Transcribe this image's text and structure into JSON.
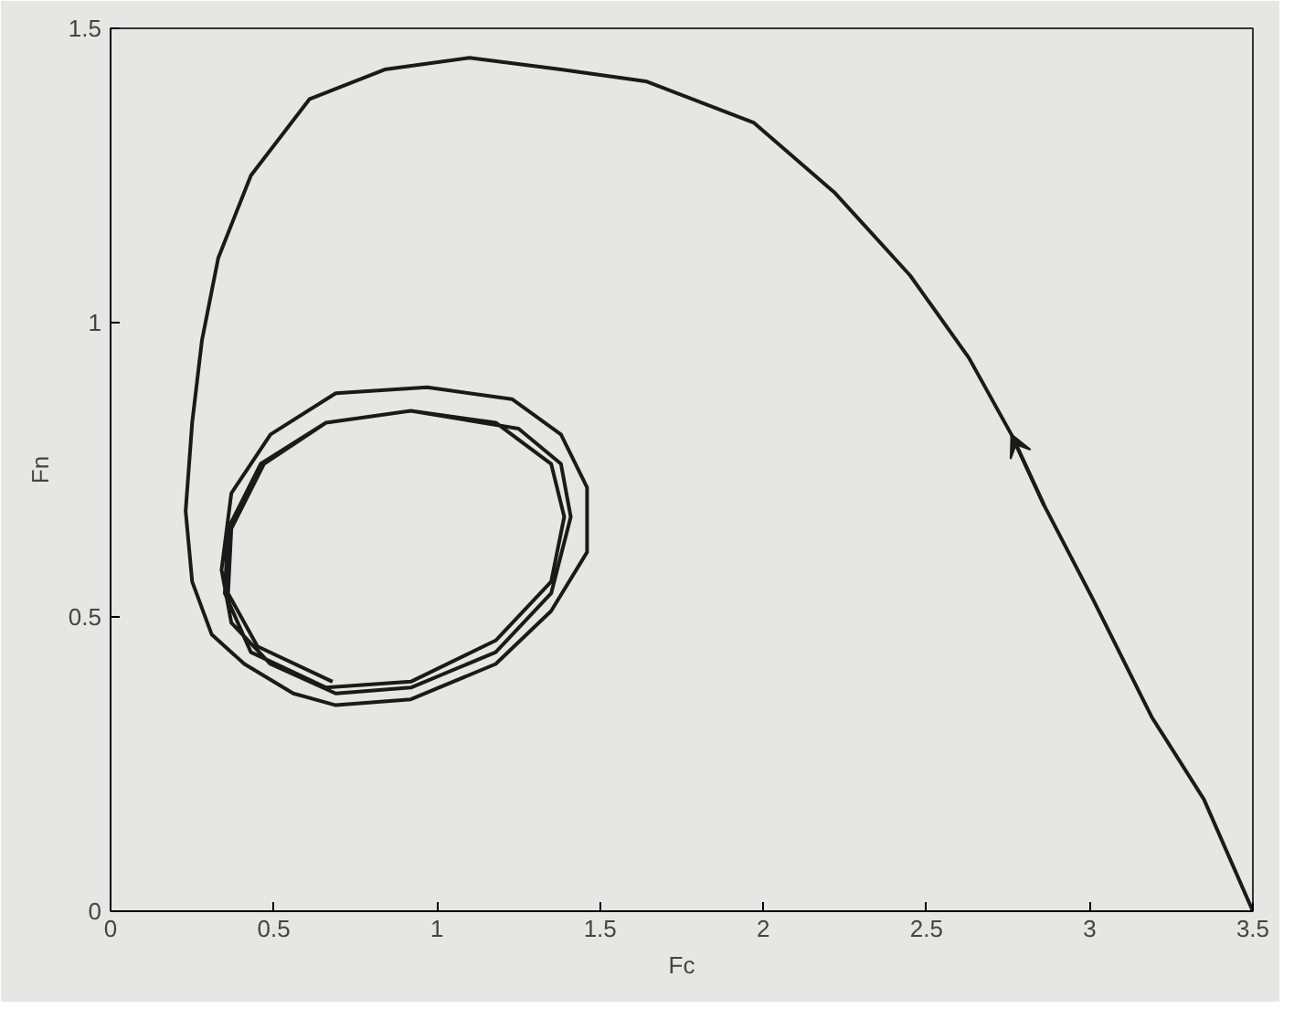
{
  "chart_data": {
    "type": "line",
    "xlabel": "Fc",
    "ylabel": "Fn",
    "xlim": [
      0,
      3.5
    ],
    "ylim": [
      0,
      1.5
    ],
    "xticks": [
      0,
      0.5,
      1,
      1.5,
      2,
      2.5,
      3,
      3.5
    ],
    "yticks": [
      0,
      0.5,
      1,
      1.5
    ],
    "grid": false,
    "marker": "none",
    "line_style": "solid",
    "series": [
      {
        "color": "#1a1a1a",
        "x": [
          3.5,
          3.35,
          3.19,
          3.01,
          2.86,
          2.76,
          2.63,
          2.45,
          2.22,
          1.97,
          1.64,
          1.38,
          1.1,
          0.84,
          0.61,
          0.43,
          0.33,
          0.28,
          0.25,
          0.23,
          0.25,
          0.31,
          0.41,
          0.56,
          0.69,
          0.92,
          1.18,
          1.35,
          1.46,
          1.46,
          1.38,
          1.23,
          0.97,
          0.69,
          0.49,
          0.37,
          0.34,
          0.37,
          0.49,
          0.69,
          0.92,
          1.18,
          1.35,
          1.41,
          1.38,
          1.25,
          0.92,
          0.66,
          0.46,
          0.36,
          0.35,
          0.43,
          0.66,
          0.92,
          1.18,
          1.35,
          1.39,
          1.35,
          1.18,
          0.92,
          0.66,
          0.47,
          0.37,
          0.36,
          0.45,
          0.68
        ],
        "values": [
          0,
          0.19,
          0.33,
          0.53,
          0.69,
          0.81,
          0.94,
          1.08,
          1.22,
          1.34,
          1.41,
          1.43,
          1.45,
          1.43,
          1.38,
          1.25,
          1.11,
          0.97,
          0.83,
          0.68,
          0.56,
          0.47,
          0.42,
          0.37,
          0.35,
          0.36,
          0.42,
          0.51,
          0.61,
          0.72,
          0.81,
          0.87,
          0.89,
          0.88,
          0.81,
          0.71,
          0.58,
          0.49,
          0.42,
          0.37,
          0.38,
          0.44,
          0.54,
          0.67,
          0.76,
          0.82,
          0.85,
          0.83,
          0.76,
          0.65,
          0.54,
          0.44,
          0.38,
          0.39,
          0.46,
          0.56,
          0.67,
          0.76,
          0.83,
          0.85,
          0.83,
          0.76,
          0.65,
          0.54,
          0.45,
          0.39
        ]
      }
    ]
  }
}
